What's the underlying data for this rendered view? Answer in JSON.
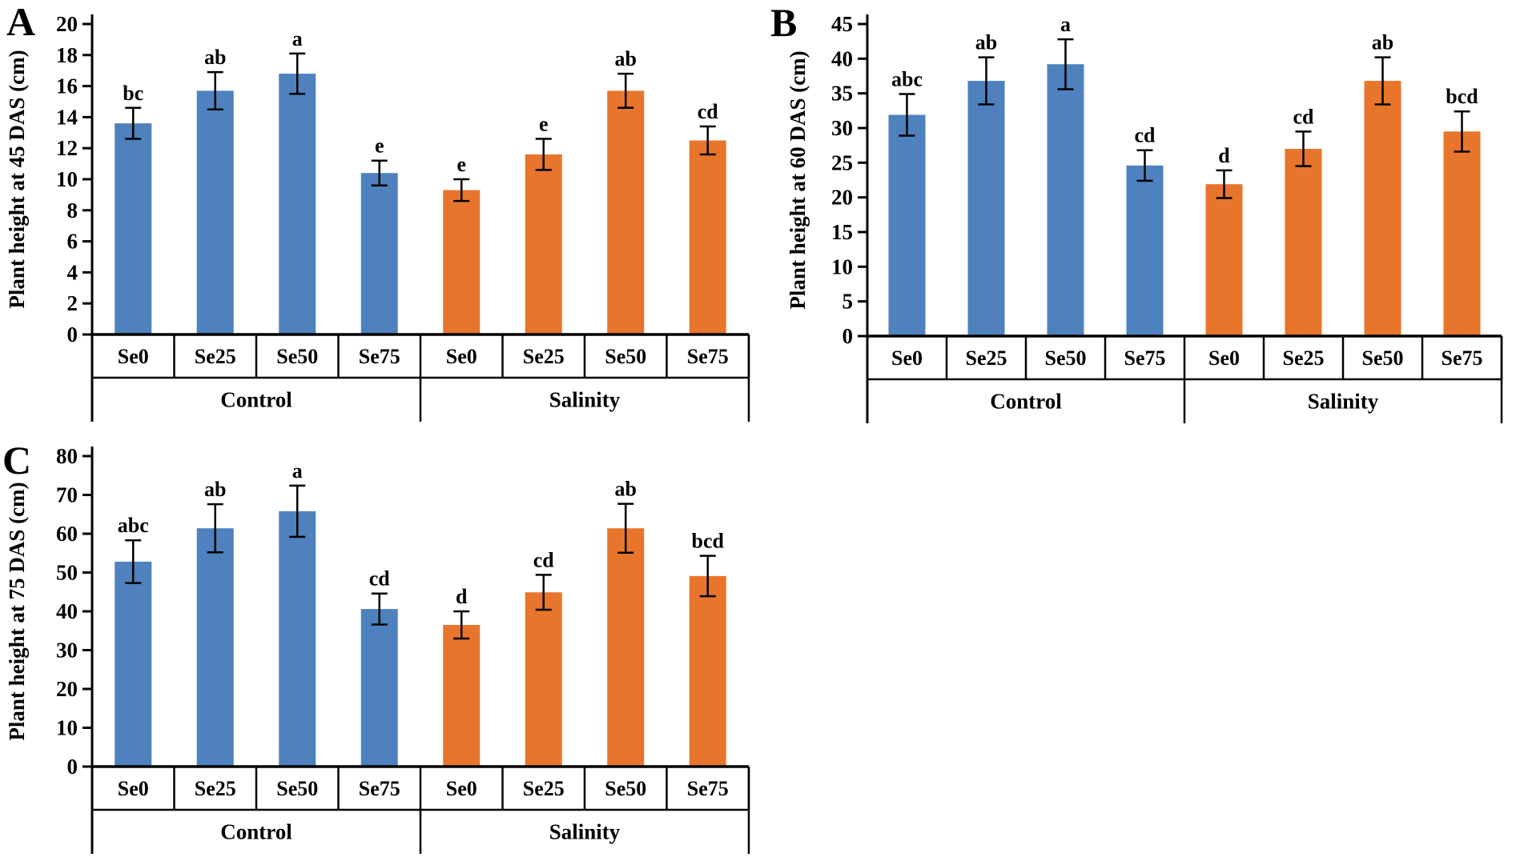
{
  "figure": {
    "background": "#ffffff",
    "description": "Three-panel bar figure of plant height under Control and Salinity with selenium treatments"
  },
  "colors": {
    "control_bar": "#4E81BD",
    "salinity_bar": "#E8752C",
    "axis": "#000000",
    "error_bar": "#000000",
    "text": "#000000"
  },
  "chart_data": [
    {
      "panel": "A",
      "type": "bar",
      "title": "",
      "xlabel": "",
      "ylabel": "Plant height at 45 DAS (cm)",
      "ylim": [
        0,
        20
      ],
      "ytick_step": 2,
      "grid": false,
      "legend": "none",
      "categories": [
        "Se0",
        "Se25",
        "Se50",
        "Se75"
      ],
      "group_labels": [
        "Control",
        "Salinity"
      ],
      "series": [
        {
          "name": "Control",
          "color_key": "control_bar",
          "values": [
            13.6,
            15.7,
            16.8,
            10.4
          ],
          "errors": [
            1.0,
            1.2,
            1.3,
            0.8
          ],
          "sig_letters": [
            "bc",
            "ab",
            "a",
            "e"
          ]
        },
        {
          "name": "Salinity",
          "color_key": "salinity_bar",
          "values": [
            9.3,
            11.6,
            15.7,
            12.5
          ],
          "errors": [
            0.7,
            1.0,
            1.1,
            0.9
          ],
          "sig_letters": [
            "e",
            "e",
            "ab",
            "cd"
          ]
        }
      ]
    },
    {
      "panel": "B",
      "type": "bar",
      "title": "",
      "xlabel": "",
      "ylabel": "Plant height at 60 DAS (cm)",
      "ylim": [
        0,
        45
      ],
      "ytick_step": 5,
      "grid": false,
      "legend": "none",
      "categories": [
        "Se0",
        "Se25",
        "Se50",
        "Se75"
      ],
      "group_labels": [
        "Control",
        "Salinity"
      ],
      "series": [
        {
          "name": "Control",
          "color_key": "control_bar",
          "values": [
            31.9,
            36.8,
            39.2,
            24.6
          ],
          "errors": [
            3.0,
            3.4,
            3.6,
            2.2
          ],
          "sig_letters": [
            "abc",
            "ab",
            "a",
            "cd"
          ]
        },
        {
          "name": "Salinity",
          "color_key": "salinity_bar",
          "values": [
            21.9,
            27.0,
            36.8,
            29.5
          ],
          "errors": [
            2.0,
            2.5,
            3.4,
            2.9
          ],
          "sig_letters": [
            "d",
            "cd",
            "ab",
            "bcd"
          ]
        }
      ]
    },
    {
      "panel": "C",
      "type": "bar",
      "title": "",
      "xlabel": "",
      "ylabel": "Plant height at 75 DAS (cm)",
      "ylim": [
        0,
        80
      ],
      "ytick_step": 10,
      "grid": false,
      "legend": "none",
      "categories": [
        "Se0",
        "Se25",
        "Se50",
        "Se75"
      ],
      "group_labels": [
        "Control",
        "Salinity"
      ],
      "series": [
        {
          "name": "Control",
          "color_key": "control_bar",
          "values": [
            52.8,
            61.4,
            65.8,
            40.6
          ],
          "errors": [
            5.5,
            6.2,
            6.6,
            4.0
          ],
          "sig_letters": [
            "abc",
            "ab",
            "a",
            "cd"
          ]
        },
        {
          "name": "Salinity",
          "color_key": "salinity_bar",
          "values": [
            36.5,
            44.9,
            61.4,
            49.1
          ],
          "errors": [
            3.5,
            4.5,
            6.3,
            5.2
          ],
          "sig_letters": [
            "d",
            "cd",
            "ab",
            "bcd"
          ]
        }
      ]
    }
  ]
}
